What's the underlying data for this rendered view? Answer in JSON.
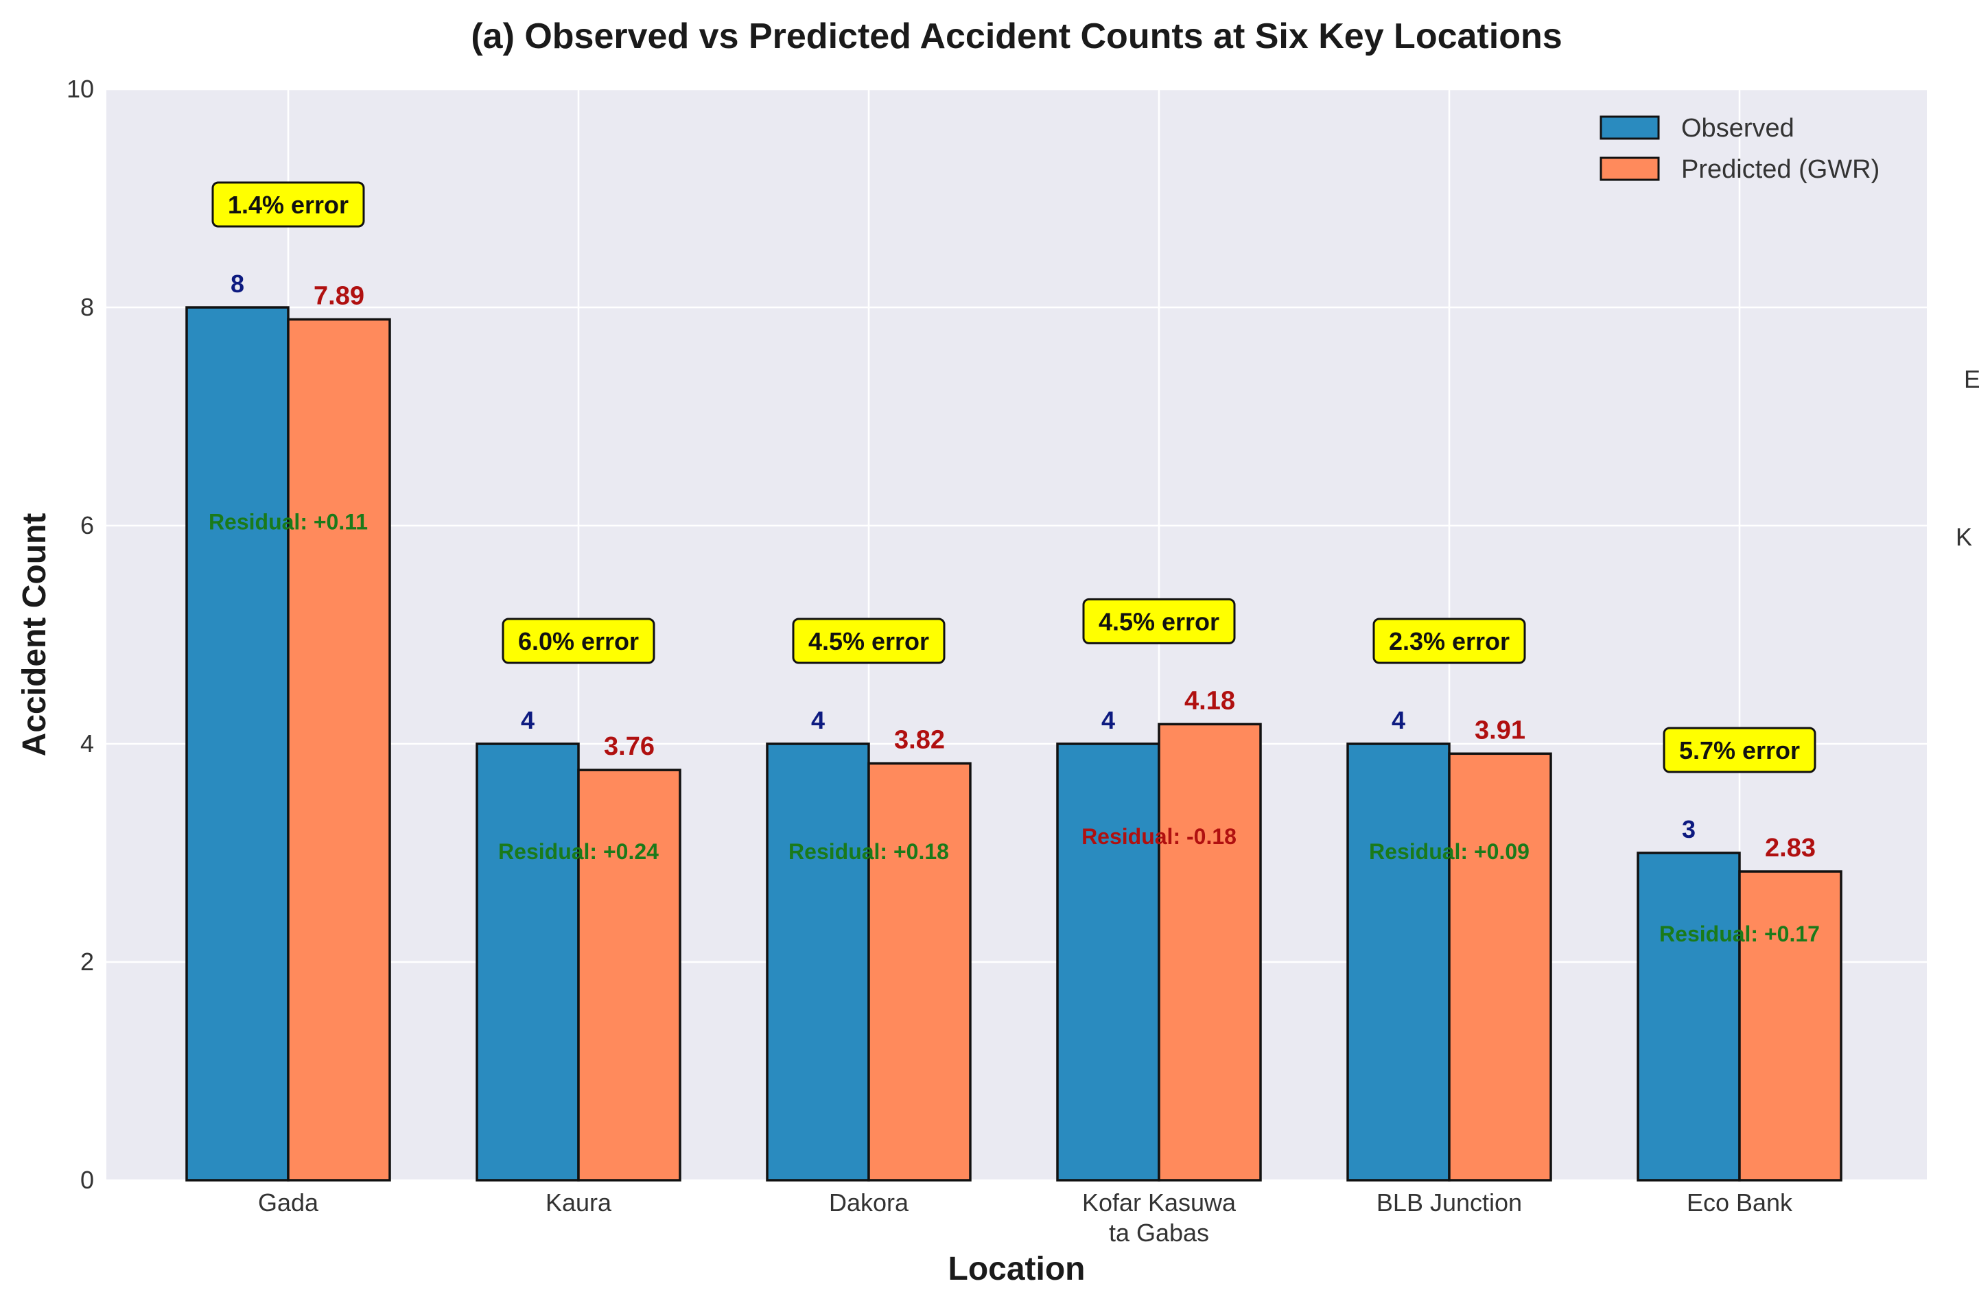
{
  "chart_data": {
    "type": "bar",
    "title": "(a) Observed vs Predicted Accident Counts at Six Key Locations",
    "xlabel": "Location",
    "ylabel": "Accident Count",
    "ylim": [
      0,
      10
    ],
    "yticks": [
      "0",
      "2",
      "4",
      "6",
      "8",
      "10"
    ],
    "grid": true,
    "legend": "top-right",
    "categories": [
      [
        "Gada"
      ],
      [
        "Kaura"
      ],
      [
        "Dakora"
      ],
      [
        "Kofar Kasuwa",
        "ta Gabas"
      ],
      [
        "BLB Junction"
      ],
      [
        "Eco Bank"
      ]
    ],
    "series": [
      {
        "name": "Observed",
        "color": "#2a8bbf",
        "values": [
          8,
          4,
          4,
          4,
          4,
          3
        ],
        "labels": [
          "8",
          "4",
          "4",
          "4",
          "4",
          "3"
        ]
      },
      {
        "name": "Predicted (GWR)",
        "color": "#ff8a5c",
        "values": [
          7.89,
          3.76,
          3.82,
          4.18,
          3.91,
          2.83
        ],
        "labels": [
          "7.89",
          "3.76",
          "3.82",
          "4.18",
          "3.91",
          "2.83"
        ]
      }
    ],
    "error_labels": [
      "1.4% error",
      "6.0% error",
      "4.5% error",
      "4.5% error",
      "2.3% error",
      "5.7% error"
    ],
    "residual_labels": [
      "Residual: +0.11",
      "Residual: +0.24",
      "Residual: +0.18",
      "Residual: -0.18",
      "Residual: +0.09",
      "Residual: +0.17"
    ],
    "colors": {
      "positive_residual": "#1a7a1a",
      "negative_residual": "#b01010",
      "error_box": "#ffff00",
      "plot_background": "#eaeaf2"
    },
    "edge_fragments": [
      "E",
      "K"
    ]
  }
}
